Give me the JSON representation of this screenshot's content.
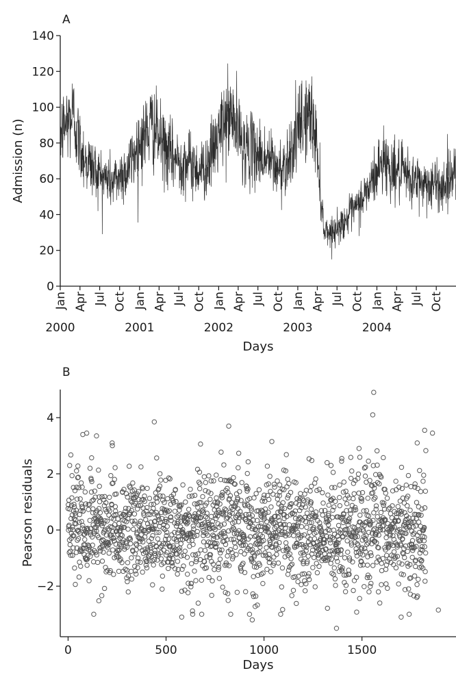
{
  "chart_data": [
    {
      "panel_label": "A",
      "type": "line",
      "xlabel": "Days",
      "ylabel": "Admission (n)",
      "ylim": [
        0,
        140
      ],
      "yticks": [
        0,
        20,
        40,
        60,
        80,
        100,
        120,
        140
      ],
      "xlim": [
        "2000-01-01",
        "2004-12-31"
      ],
      "x_month_ticks": [
        {
          "date": "2000-01-01",
          "label": "Jan",
          "year": "2000"
        },
        {
          "date": "2000-04-01",
          "label": "Apr"
        },
        {
          "date": "2000-07-01",
          "label": "Jul"
        },
        {
          "date": "2000-10-01",
          "label": "Oct"
        },
        {
          "date": "2001-01-01",
          "label": "Jan",
          "year": "2001"
        },
        {
          "date": "2001-04-01",
          "label": "Apr"
        },
        {
          "date": "2001-07-01",
          "label": "Jul"
        },
        {
          "date": "2001-10-01",
          "label": "Oct"
        },
        {
          "date": "2002-01-01",
          "label": "Jan",
          "year": "2002"
        },
        {
          "date": "2002-04-01",
          "label": "Apr"
        },
        {
          "date": "2002-07-01",
          "label": "Jul"
        },
        {
          "date": "2002-10-01",
          "label": "Oct"
        },
        {
          "date": "2003-01-01",
          "label": "Jan",
          "year": "2003"
        },
        {
          "date": "2003-04-01",
          "label": "Apr"
        },
        {
          "date": "2003-07-01",
          "label": "Jul"
        },
        {
          "date": "2003-10-01",
          "label": "Oct"
        },
        {
          "date": "2004-01-01",
          "label": "Jan",
          "year": "2004"
        },
        {
          "date": "2004-04-01",
          "label": "Apr"
        },
        {
          "date": "2004-07-01",
          "label": "Jul"
        },
        {
          "date": "2004-10-01",
          "label": "Oct"
        }
      ],
      "series": [
        {
          "values_description": "approximate daily admissions trend (mean level read from the chart)",
          "x": [
            "2000-01-01",
            "2000-02-01",
            "2000-03-01",
            "2000-04-01",
            "2000-05-01",
            "2000-06-01",
            "2000-07-01",
            "2000-08-01",
            "2000-09-01",
            "2000-10-01",
            "2000-11-01",
            "2000-12-01",
            "2001-01-01",
            "2001-02-01",
            "2001-03-01",
            "2001-04-01",
            "2001-05-01",
            "2001-06-01",
            "2001-07-01",
            "2001-08-01",
            "2001-09-01",
            "2001-10-01",
            "2001-11-01",
            "2001-12-01",
            "2002-01-01",
            "2002-02-01",
            "2002-03-01",
            "2002-04-01",
            "2002-05-01",
            "2002-06-01",
            "2002-07-01",
            "2002-08-01",
            "2002-09-01",
            "2002-10-01",
            "2002-11-01",
            "2002-12-01",
            "2003-01-01",
            "2003-02-01",
            "2003-03-01",
            "2003-03-25",
            "2003-04-15",
            "2003-05-01",
            "2003-06-01",
            "2003-07-01",
            "2003-08-01",
            "2003-09-01",
            "2003-10-01",
            "2003-11-01",
            "2003-12-01",
            "2004-01-01",
            "2004-02-01",
            "2004-03-01",
            "2004-04-01",
            "2004-05-01",
            "2004-06-01",
            "2004-07-01",
            "2004-08-01",
            "2004-09-01",
            "2004-10-01",
            "2004-11-01",
            "2004-12-01",
            "2004-12-31"
          ],
          "values": [
            85,
            92,
            96,
            78,
            70,
            66,
            62,
            60,
            58,
            62,
            64,
            72,
            80,
            86,
            90,
            82,
            76,
            72,
            70,
            70,
            68,
            65,
            66,
            74,
            84,
            92,
            96,
            86,
            78,
            76,
            74,
            72,
            70,
            64,
            68,
            76,
            86,
            94,
            96,
            84,
            55,
            32,
            30,
            32,
            36,
            40,
            44,
            50,
            56,
            64,
            72,
            66,
            64,
            62,
            60,
            58,
            58,
            57,
            56,
            56,
            60,
            68
          ]
        }
      ]
    },
    {
      "panel_label": "B",
      "type": "scatter",
      "xlabel": "Days",
      "ylabel": "Pearson residuals",
      "xlim": [
        -40,
        1980
      ],
      "ylim": [
        -3.8,
        5.0
      ],
      "xticks": [
        0,
        500,
        1000,
        1500
      ],
      "yticks": [
        -2,
        0,
        2,
        4
      ],
      "n_points": 1827,
      "highlighted_points": [
        {
          "x": 1560,
          "y": 4.9
        },
        {
          "x": 1555,
          "y": 4.1
        },
        {
          "x": 440,
          "y": 3.85
        },
        {
          "x": 820,
          "y": 3.7
        },
        {
          "x": 1820,
          "y": 3.55
        },
        {
          "x": 1860,
          "y": 3.45
        },
        {
          "x": 75,
          "y": 3.4
        },
        {
          "x": 95,
          "y": 3.45
        },
        {
          "x": 145,
          "y": 3.35
        },
        {
          "x": 225,
          "y": 3.1
        },
        {
          "x": 1040,
          "y": 3.15
        },
        {
          "x": 1370,
          "y": -3.5
        },
        {
          "x": 940,
          "y": -3.2
        },
        {
          "x": 1700,
          "y": -3.1
        },
        {
          "x": 580,
          "y": -3.1
        },
        {
          "x": 1890,
          "y": -2.85
        }
      ]
    }
  ]
}
